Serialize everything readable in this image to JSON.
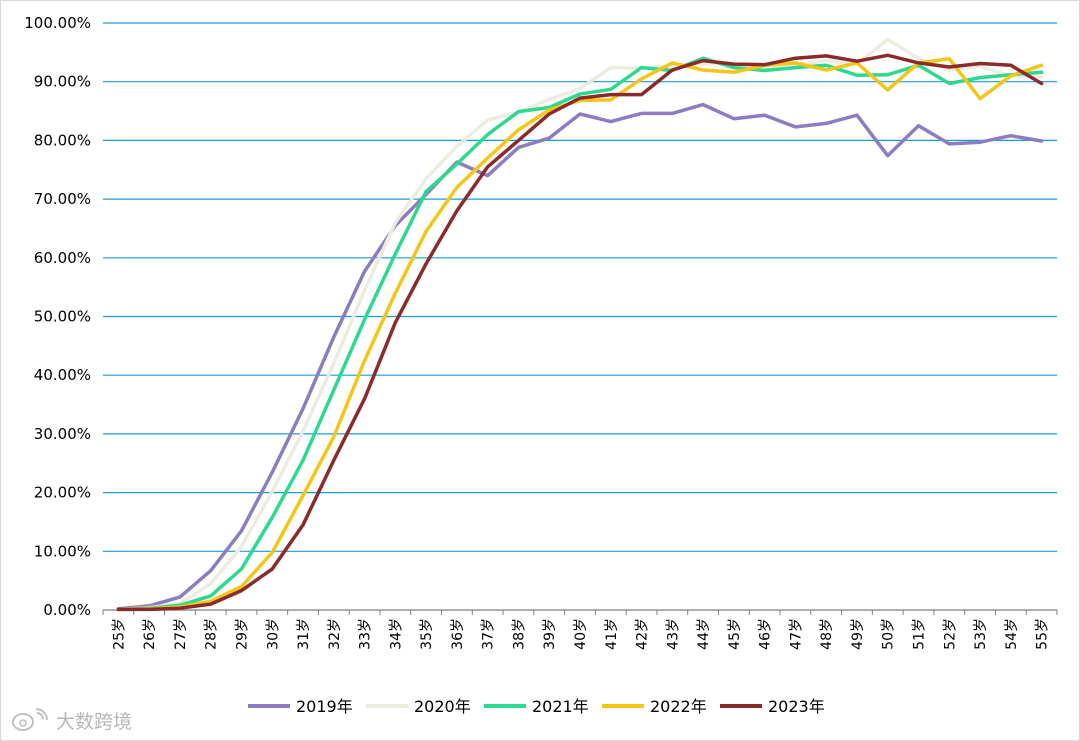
{
  "chart_data": {
    "type": "line",
    "title": "",
    "xlabel": "",
    "ylabel": "",
    "ylim": [
      0,
      100
    ],
    "yticks": [
      "0.00%",
      "10.00%",
      "20.00%",
      "30.00%",
      "40.00%",
      "50.00%",
      "60.00%",
      "70.00%",
      "80.00%",
      "90.00%",
      "100.00%"
    ],
    "grid": "horizontal",
    "legend_position": "bottom",
    "categories": [
      "25岁",
      "26岁",
      "27岁",
      "28岁",
      "29岁",
      "30岁",
      "31岁",
      "32岁",
      "33岁",
      "34岁",
      "35岁",
      "36岁",
      "37岁",
      "38岁",
      "39岁",
      "40岁",
      "41岁",
      "42岁",
      "43岁",
      "44岁",
      "45岁",
      "46岁",
      "47岁",
      "48岁",
      "49岁",
      "50岁",
      "51岁",
      "52岁",
      "53岁",
      "54岁",
      "55岁"
    ],
    "series": [
      {
        "name": "2019年",
        "color": "#8e7cc3",
        "values": [
          0.2,
          0.7,
          2.2,
          6.7,
          13.5,
          23.5,
          34.3,
          46.5,
          57.7,
          65.5,
          70.8,
          76.3,
          74.0,
          78.8,
          80.4,
          84.5,
          83.2,
          84.6,
          84.6,
          86.1,
          83.7,
          84.3,
          82.3,
          82.9,
          84.3,
          77.4,
          82.5,
          79.4,
          79.7,
          80.8,
          79.9
        ]
      },
      {
        "name": "2020年",
        "color": "#ececdf",
        "values": [
          0.1,
          0.4,
          1.1,
          4.5,
          10.8,
          20.2,
          30.5,
          42.0,
          54.5,
          66.0,
          73.5,
          79.0,
          83.5,
          84.8,
          87.0,
          88.8,
          92.4,
          92.3,
          92.6,
          93.1,
          92.9,
          92.4,
          92.9,
          93.6,
          93.0,
          97.2,
          94.0,
          92.0,
          92.6,
          91.0,
          90.8
        ]
      },
      {
        "name": "2021年",
        "color": "#2dd98f",
        "values": [
          0.1,
          0.3,
          0.8,
          2.4,
          7.0,
          15.8,
          25.5,
          37.5,
          49.5,
          60.7,
          71.3,
          76.0,
          81.0,
          84.9,
          85.6,
          87.9,
          88.7,
          92.4,
          91.9,
          94.0,
          92.4,
          91.9,
          92.4,
          92.8,
          91.1,
          91.2,
          92.8,
          89.7,
          90.7,
          91.2,
          91.6
        ]
      },
      {
        "name": "2022年",
        "color": "#f5c518",
        "values": [
          0.1,
          0.2,
          0.5,
          1.5,
          4.0,
          9.8,
          19.5,
          29.5,
          42.5,
          54.0,
          64.5,
          72.0,
          77.0,
          81.8,
          85.2,
          86.8,
          86.9,
          90.5,
          93.2,
          92.0,
          91.6,
          92.8,
          93.2,
          92.0,
          93.2,
          88.6,
          93.2,
          93.9,
          87.1,
          91.0,
          92.8
        ]
      },
      {
        "name": "2023年",
        "color": "#8b2a2a",
        "values": [
          0.1,
          0.1,
          0.3,
          1.0,
          3.3,
          7.0,
          14.5,
          25.5,
          36.0,
          49.0,
          59.0,
          68.0,
          75.5,
          80.0,
          84.5,
          87.2,
          87.8,
          87.8,
          92.0,
          93.6,
          93.0,
          92.9,
          94.0,
          94.4,
          93.5,
          94.5,
          93.2,
          92.5,
          93.1,
          92.8,
          89.7
        ]
      }
    ]
  },
  "watermark": {
    "icon": "weibo-logo-icon",
    "text": "大数跨境"
  }
}
